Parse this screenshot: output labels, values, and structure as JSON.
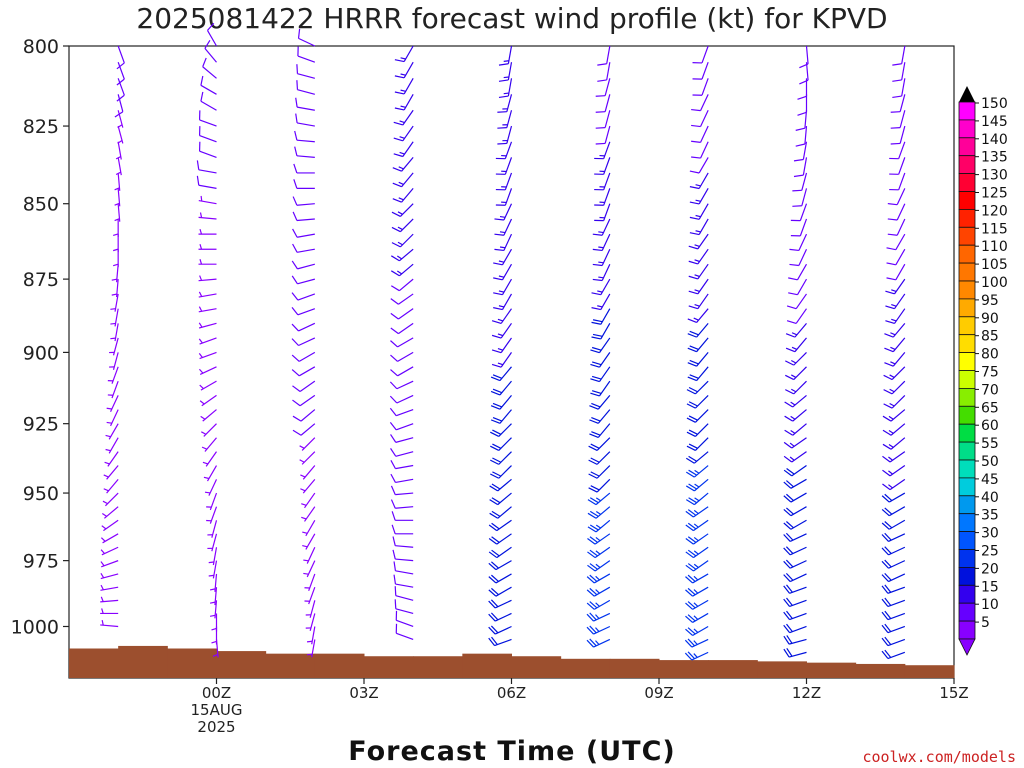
{
  "chart_data": {
    "type": "wind-barb profile",
    "title": "2025081422 HRRR forecast wind profile (kt) for KPVD",
    "xlabel": "Forecast Time (UTC)",
    "ylabel": "",
    "credit": "coolwx.com/models",
    "y_axis": {
      "scale": "pressure",
      "ticks": [
        "800",
        "825",
        "850",
        "875",
        "900",
        "925",
        "950",
        "975",
        "1000"
      ],
      "range": [
        800,
        1020
      ]
    },
    "x_axis": {
      "range_hours": [
        -1,
        17
      ],
      "ticks": [
        {
          "hour": 2,
          "line1": "00Z",
          "line2": "15AUG",
          "line3": "2025"
        },
        {
          "hour": 5,
          "line1": "03Z",
          "line2": "",
          "line3": ""
        },
        {
          "hour": 8,
          "line1": "06Z",
          "line2": "",
          "line3": ""
        },
        {
          "hour": 11,
          "line1": "09Z",
          "line2": "",
          "line3": ""
        },
        {
          "hour": 14,
          "line1": "12Z",
          "line2": "",
          "line3": ""
        },
        {
          "hour": 17,
          "line1": "15Z",
          "line2": "",
          "line3": ""
        }
      ]
    },
    "colorbar": {
      "labels": [
        "150",
        "145",
        "140",
        "135",
        "130",
        "125",
        "120",
        "115",
        "110",
        "105",
        "100",
        "95",
        "90",
        "85",
        "80",
        "75",
        "70",
        "65",
        "60",
        "55",
        "50",
        "45",
        "40",
        "35",
        "30",
        "25",
        "20",
        "15",
        "10",
        "5"
      ],
      "colors": [
        "#ff00ff",
        "#ff00cc",
        "#ff0099",
        "#ff0066",
        "#ff0033",
        "#ff0000",
        "#ff2200",
        "#ff4400",
        "#ff6600",
        "#ff7700",
        "#ff8800",
        "#ffaa00",
        "#ffcc00",
        "#ffdd00",
        "#ffff00",
        "#ccff00",
        "#88ee00",
        "#44dd00",
        "#00dd44",
        "#00dd88",
        "#00ddbb",
        "#00ccdd",
        "#0099ee",
        "#0077ff",
        "#0055ff",
        "#0033ee",
        "#0011dd",
        "#3300ee",
        "#6600ff",
        "#8800ff"
      ],
      "top_color": "#000000"
    },
    "surface_pressure_hpa": [
      1008.5,
      1007.5,
      1008.5,
      1009.5,
      1010.5,
      1010.5,
      1011.5,
      1011.5,
      1010.5,
      1011.5,
      1012.5,
      1012.5,
      1013,
      1013,
      1013.5,
      1014,
      1014.5,
      1015
    ],
    "levels_hpa": [
      800,
      805,
      810,
      815,
      820,
      825,
      830,
      835,
      840,
      845,
      850,
      855,
      860,
      865,
      870,
      875,
      880,
      885,
      890,
      895,
      900,
      905,
      910,
      915,
      920,
      925,
      930,
      935,
      940,
      945,
      950,
      955,
      960,
      965,
      970,
      975,
      980,
      985,
      990,
      995,
      1000,
      1005,
      1010
    ],
    "series": [
      {
        "time": 22,
        "dir": [
          160,
          160,
          160,
          165,
          165,
          165,
          170,
          170,
          175,
          175,
          175,
          180,
          180,
          180,
          185,
          185,
          190,
          190,
          190,
          195,
          195,
          200,
          200,
          205,
          205,
          210,
          210,
          215,
          220,
          220,
          225,
          230,
          235,
          240,
          245,
          250,
          255,
          260,
          265,
          270,
          275,
          280,
          285
        ],
        "speed": [
          8,
          8,
          8,
          8,
          7,
          7,
          7,
          7,
          7,
          7,
          7,
          7,
          6,
          6,
          6,
          6,
          6,
          6,
          6,
          6,
          6,
          5,
          5,
          5,
          5,
          5,
          5,
          5,
          5,
          5,
          5,
          5,
          5,
          5,
          5,
          5,
          5,
          5,
          5,
          5,
          5,
          5,
          5
        ]
      },
      {
        "time": 0,
        "dir": [
          330,
          320,
          310,
          300,
          300,
          290,
          290,
          290,
          280,
          280,
          280,
          275,
          270,
          270,
          270,
          265,
          260,
          260,
          255,
          250,
          250,
          245,
          240,
          235,
          230,
          225,
          220,
          215,
          210,
          205,
          200,
          200,
          195,
          195,
          190,
          190,
          185,
          185,
          185,
          180,
          180,
          175,
          175
        ],
        "speed": [
          8,
          8,
          8,
          8,
          8,
          8,
          8,
          8,
          8,
          8,
          7,
          7,
          7,
          7,
          7,
          7,
          7,
          7,
          7,
          6,
          6,
          6,
          6,
          6,
          6,
          6,
          5,
          5,
          5,
          5,
          5,
          5,
          5,
          5,
          5,
          5,
          5,
          5,
          5,
          5,
          5,
          5,
          5
        ]
      },
      {
        "time": 2,
        "dir": [
          295,
          290,
          285,
          285,
          280,
          280,
          275,
          275,
          270,
          270,
          265,
          265,
          260,
          260,
          255,
          255,
          250,
          250,
          245,
          245,
          240,
          240,
          235,
          235,
          230,
          230,
          225,
          225,
          220,
          220,
          215,
          215,
          210,
          210,
          205,
          205,
          200,
          200,
          195,
          195,
          190,
          190,
          185
        ],
        "speed": [
          10,
          10,
          10,
          10,
          10,
          10,
          10,
          9,
          9,
          9,
          9,
          9,
          9,
          9,
          9,
          9,
          8,
          8,
          8,
          8,
          8,
          8,
          8,
          8,
          8,
          8,
          7,
          7,
          7,
          7,
          7,
          7,
          7,
          7,
          7,
          7,
          6,
          6,
          6,
          6,
          6,
          6,
          6
        ]
      },
      {
        "time": 4,
        "dir": [
          210,
          210,
          210,
          210,
          215,
          215,
          215,
          220,
          220,
          220,
          225,
          225,
          225,
          230,
          230,
          230,
          235,
          235,
          235,
          240,
          240,
          240,
          245,
          245,
          250,
          250,
          255,
          255,
          260,
          260,
          265,
          265,
          270,
          270,
          275,
          275,
          280,
          280,
          285,
          285,
          290,
          290,
          295
        ],
        "speed": [
          13,
          13,
          13,
          13,
          13,
          13,
          13,
          13,
          13,
          13,
          13,
          13,
          13,
          13,
          13,
          12,
          12,
          12,
          12,
          12,
          12,
          12,
          12,
          11,
          11,
          11,
          11,
          11,
          10,
          10,
          10,
          10,
          10,
          10,
          10,
          10,
          9,
          9,
          9,
          9,
          9,
          9,
          9
        ]
      },
      {
        "time": 6,
        "dir": [
          190,
          190,
          190,
          195,
          195,
          195,
          200,
          200,
          200,
          200,
          205,
          205,
          205,
          210,
          210,
          210,
          210,
          215,
          215,
          215,
          215,
          220,
          220,
          220,
          220,
          225,
          225,
          225,
          225,
          230,
          230,
          230,
          235,
          235,
          235,
          240,
          240,
          240,
          245,
          245,
          245,
          250,
          250
        ],
        "speed": [
          13,
          13,
          14,
          14,
          14,
          14,
          15,
          15,
          15,
          15,
          15,
          15,
          16,
          16,
          16,
          16,
          16,
          17,
          17,
          17,
          17,
          18,
          18,
          18,
          18,
          18,
          19,
          19,
          19,
          19,
          19,
          20,
          20,
          20,
          20,
          20,
          21,
          21,
          21,
          21,
          21,
          21,
          21
        ]
      },
      {
        "time": 8,
        "dir": [
          190,
          190,
          195,
          195,
          195,
          195,
          200,
          200,
          200,
          200,
          200,
          205,
          205,
          205,
          205,
          210,
          210,
          210,
          210,
          215,
          215,
          215,
          215,
          220,
          220,
          220,
          225,
          225,
          225,
          225,
          230,
          230,
          230,
          235,
          235,
          235,
          240,
          240,
          240,
          245,
          245,
          245,
          245
        ],
        "speed": [
          10,
          10,
          11,
          11,
          12,
          12,
          13,
          13,
          14,
          14,
          14,
          15,
          15,
          16,
          16,
          17,
          17,
          18,
          18,
          19,
          19,
          20,
          20,
          20,
          21,
          21,
          21,
          22,
          22,
          22,
          23,
          23,
          23,
          24,
          24,
          24,
          24,
          25,
          25,
          25,
          25,
          25,
          25
        ]
      },
      {
        "time": 10,
        "dir": [
          200,
          200,
          200,
          205,
          205,
          205,
          205,
          210,
          210,
          210,
          210,
          210,
          215,
          215,
          215,
          215,
          215,
          220,
          220,
          220,
          220,
          220,
          225,
          225,
          225,
          225,
          225,
          230,
          230,
          230,
          230,
          235,
          235,
          235,
          235,
          235,
          240,
          240,
          240,
          240,
          240,
          245,
          245
        ],
        "speed": [
          9,
          9,
          10,
          10,
          11,
          11,
          12,
          12,
          13,
          13,
          14,
          14,
          15,
          15,
          16,
          16,
          17,
          17,
          18,
          18,
          19,
          19,
          20,
          20,
          21,
          21,
          22,
          22,
          23,
          23,
          24,
          24,
          25,
          25,
          26,
          26,
          26,
          27,
          27,
          27,
          27,
          27,
          27
        ]
      },
      {
        "time": 12,
        "dir": [
          175,
          175,
          180,
          180,
          185,
          185,
          190,
          190,
          195,
          195,
          200,
          200,
          205,
          205,
          210,
          210,
          215,
          215,
          220,
          220,
          225,
          225,
          225,
          230,
          230,
          230,
          235,
          235,
          235,
          240,
          240,
          240,
          240,
          245,
          245,
          245,
          245,
          250,
          250,
          250,
          250,
          255,
          255
        ],
        "speed": [
          8,
          8,
          8,
          8,
          8,
          8,
          9,
          9,
          9,
          9,
          9,
          10,
          10,
          10,
          11,
          11,
          12,
          12,
          13,
          13,
          14,
          14,
          15,
          15,
          16,
          16,
          17,
          17,
          18,
          18,
          19,
          19,
          20,
          20,
          20,
          21,
          21,
          21,
          22,
          22,
          22,
          22,
          22
        ]
      },
      {
        "time": 14,
        "dir": [
          190,
          190,
          190,
          195,
          195,
          195,
          200,
          200,
          200,
          205,
          205,
          205,
          210,
          210,
          210,
          215,
          215,
          215,
          220,
          220,
          220,
          225,
          225,
          225,
          230,
          230,
          230,
          235,
          235,
          235,
          240,
          240,
          240,
          245,
          245,
          245,
          245,
          250,
          250,
          250,
          250,
          250,
          250
        ],
        "speed": [
          9,
          9,
          9,
          9,
          10,
          10,
          10,
          10,
          11,
          11,
          11,
          11,
          12,
          12,
          12,
          13,
          13,
          13,
          14,
          14,
          14,
          15,
          15,
          15,
          16,
          16,
          16,
          17,
          17,
          17,
          18,
          18,
          18,
          18,
          19,
          19,
          19,
          19,
          19,
          20,
          20,
          20,
          20
        ]
      }
    ]
  }
}
